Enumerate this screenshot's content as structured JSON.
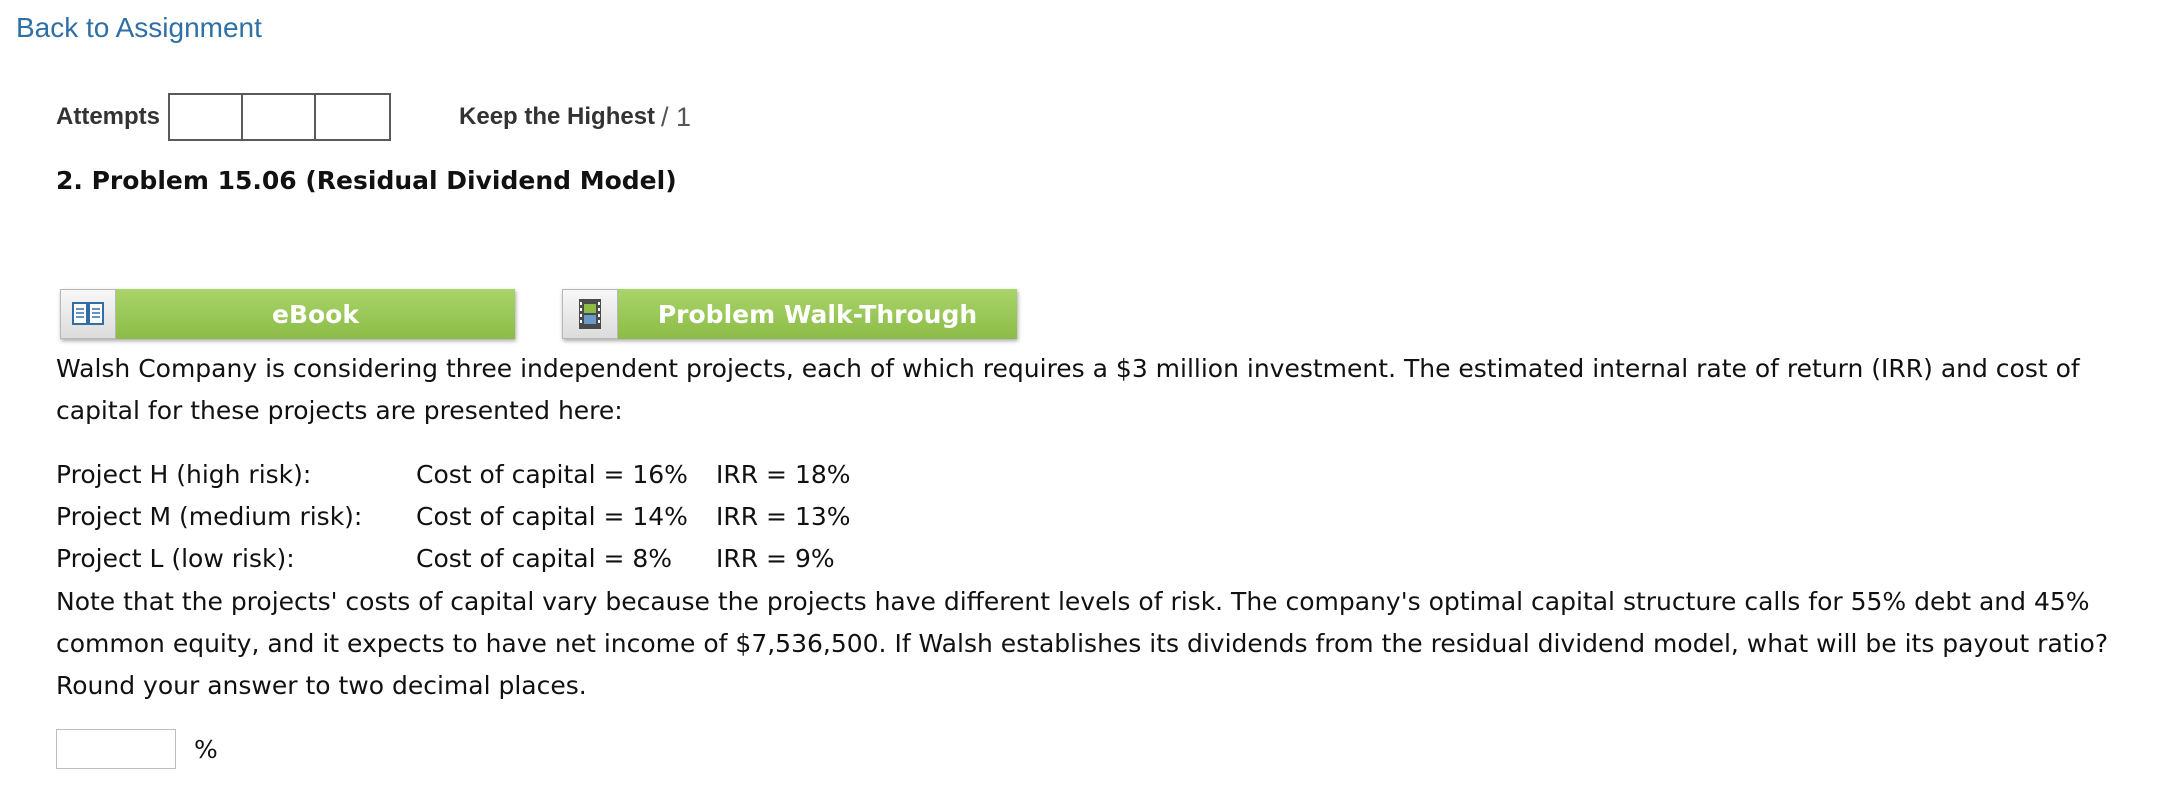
{
  "header": {
    "back_link": "Back to Assignment"
  },
  "attempts": {
    "label": "Attempts",
    "keep_highest": "Keep the Highest",
    "score_suffix": "/ 1"
  },
  "problem": {
    "title": "2.  Problem 15.06 (Residual Dividend Model)"
  },
  "tools": {
    "ebook_label": "eBook",
    "walkthrough_label": "Problem Walk-Through",
    "ebook_icon": "book-icon",
    "walkthrough_icon": "film-icon"
  },
  "content": {
    "intro": "Walsh Company is considering three independent projects, each of which requires a $3 million investment. The estimated internal rate of return (IRR) and cost of capital for these projects are presented here:",
    "projects": [
      {
        "name": "Project H (high risk):",
        "cost": "Cost of capital = 16%",
        "irr": "IRR = 18%"
      },
      {
        "name": "Project M (medium risk):",
        "cost": "Cost of capital = 14%",
        "irr": "IRR = 13%"
      },
      {
        "name": "Project L (low risk):",
        "cost": "Cost of capital = 8%",
        "irr": "IRR = 9%"
      }
    ],
    "note": "Note that the projects' costs of capital vary because the projects have different levels of risk. The company's optimal capital structure calls for 55% debt and 45% common equity, and it expects to have net income of $7,536,500. If Walsh establishes its dividends from the residual dividend model, what will be its payout ratio? Round your answer to two decimal places."
  },
  "answer": {
    "value": "",
    "unit": "%"
  },
  "colors": {
    "link": "#2f6fa5",
    "button_green": "#8cbc47"
  }
}
